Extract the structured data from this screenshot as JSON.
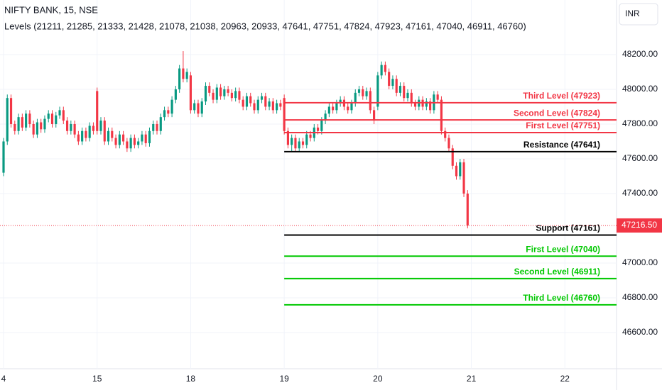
{
  "chart_data": {
    "type": "candlestick",
    "title": "NIFTY BANK, 15, NSE",
    "indicator": "Levels (21211, 21285, 21333, 21428, 21078, 21038, 20963, 20933, 47641, 47751, 47824, 47923, 47161, 47040, 46911, 46760)",
    "currency": "INR",
    "up_color": "#089981",
    "down_color": "#f23645",
    "ylim": [
      46392,
      48514
    ],
    "yticks": [
      {
        "value": 46600,
        "label": "46600.00"
      },
      {
        "value": 46800,
        "label": "46800.00"
      },
      {
        "value": 47000,
        "label": "47000.00"
      },
      {
        "value": 47400,
        "label": "47400.00"
      },
      {
        "value": 47600,
        "label": "47600.00"
      },
      {
        "value": 47800,
        "label": "47800.00"
      },
      {
        "value": 48000,
        "label": "48000.00"
      },
      {
        "value": 48200,
        "label": "48200.00"
      }
    ],
    "xlim": [
      -0.95,
      163.8
    ],
    "xticks": [
      {
        "value": 0,
        "label": "4"
      },
      {
        "value": 25,
        "label": "15"
      },
      {
        "value": 50,
        "label": "18"
      },
      {
        "value": 75,
        "label": "19"
      },
      {
        "value": 100,
        "label": "20"
      },
      {
        "value": 125,
        "label": "21"
      },
      {
        "value": 150,
        "label": "22"
      }
    ],
    "last_price": {
      "value": 47216.5,
      "label": "47216.50",
      "color": "#f23645"
    },
    "levels_start": 75,
    "levels": [
      {
        "label": "Third Level (47923)",
        "value": 47923,
        "color": "#f23645"
      },
      {
        "label": "Second Level (47824)",
        "value": 47824,
        "color": "#f23645"
      },
      {
        "label": "First Level (47751)",
        "value": 47751,
        "color": "#f23645"
      },
      {
        "label": "Resistance (47641)",
        "value": 47641,
        "color": "#000000"
      },
      {
        "label": "Support (47161)",
        "value": 47161,
        "color": "#000000"
      },
      {
        "label": "First Level (47040)",
        "value": 47040,
        "color": "#00c800"
      },
      {
        "label": "Second Level (46911)",
        "value": 46911,
        "color": "#00c800"
      },
      {
        "label": "Third Level (46760)",
        "value": 46760,
        "color": "#00c800"
      }
    ],
    "ohlc": [
      [
        47520,
        47720,
        47500,
        47700
      ],
      [
        47700,
        47970,
        47680,
        47950
      ],
      [
        47950,
        47970,
        47780,
        47800
      ],
      [
        47800,
        47820,
        47740,
        47760
      ],
      [
        47760,
        47860,
        47740,
        47840
      ],
      [
        47840,
        47860,
        47760,
        47780
      ],
      [
        47780,
        47880,
        47760,
        47860
      ],
      [
        47860,
        47880,
        47780,
        47800
      ],
      [
        47800,
        47820,
        47720,
        47740
      ],
      [
        47740,
        47830,
        47720,
        47810
      ],
      [
        47810,
        47830,
        47750,
        47770
      ],
      [
        47770,
        47850,
        47750,
        47830
      ],
      [
        47830,
        47880,
        47810,
        47860
      ],
      [
        47860,
        47880,
        47780,
        47800
      ],
      [
        47800,
        47870,
        47780,
        47850
      ],
      [
        47850,
        47900,
        47830,
        47880
      ],
      [
        47880,
        47900,
        47800,
        47820
      ],
      [
        47820,
        47840,
        47740,
        47760
      ],
      [
        47760,
        47820,
        47740,
        47800
      ],
      [
        47800,
        47820,
        47720,
        47740
      ],
      [
        47740,
        47760,
        47680,
        47700
      ],
      [
        47700,
        47780,
        47680,
        47760
      ],
      [
        47760,
        47780,
        47700,
        47720
      ],
      [
        47720,
        47810,
        47700,
        47790
      ],
      [
        47790,
        47810,
        47740,
        47760
      ],
      [
        47990,
        48010,
        47740,
        47760
      ],
      [
        47760,
        47840,
        47740,
        47820
      ],
      [
        47820,
        47840,
        47680,
        47700
      ],
      [
        47700,
        47780,
        47680,
        47760
      ],
      [
        47760,
        47780,
        47700,
        47720
      ],
      [
        47720,
        47740,
        47660,
        47680
      ],
      [
        47680,
        47760,
        47660,
        47740
      ],
      [
        47740,
        47760,
        47680,
        47700
      ],
      [
        47700,
        47720,
        47640,
        47660
      ],
      [
        47660,
        47740,
        47640,
        47720
      ],
      [
        47720,
        47740,
        47660,
        47680
      ],
      [
        47680,
        47720,
        47660,
        47700
      ],
      [
        47700,
        47760,
        47680,
        47740
      ],
      [
        47740,
        47760,
        47670,
        47690
      ],
      [
        47690,
        47780,
        47670,
        47760
      ],
      [
        47760,
        47820,
        47740,
        47800
      ],
      [
        47800,
        47820,
        47740,
        47760
      ],
      [
        47760,
        47860,
        47740,
        47840
      ],
      [
        47840,
        47900,
        47820,
        47880
      ],
      [
        47880,
        47900,
        47840,
        47860
      ],
      [
        47860,
        47960,
        47840,
        47940
      ],
      [
        47940,
        48020,
        47920,
        48000
      ],
      [
        48000,
        48140,
        47980,
        48120
      ],
      [
        48120,
        48220,
        48040,
        48060
      ],
      [
        48060,
        48120,
        48040,
        48100
      ],
      [
        48080,
        48100,
        47860,
        47880
      ],
      [
        47880,
        47940,
        47860,
        47920
      ],
      [
        47920,
        47940,
        47840,
        47860
      ],
      [
        47860,
        47950,
        47840,
        47930
      ],
      [
        47930,
        48040,
        47910,
        48020
      ],
      [
        48020,
        48040,
        47960,
        47980
      ],
      [
        47980,
        48000,
        47920,
        47940
      ],
      [
        47940,
        48030,
        47920,
        48010
      ],
      [
        48010,
        48030,
        47940,
        47960
      ],
      [
        47960,
        48020,
        47940,
        48000
      ],
      [
        48000,
        48020,
        47960,
        47980
      ],
      [
        47980,
        48000,
        47930,
        47950
      ],
      [
        47950,
        48010,
        47930,
        47990
      ],
      [
        47990,
        48010,
        47920,
        47940
      ],
      [
        47940,
        47960,
        47880,
        47900
      ],
      [
        47900,
        47980,
        47880,
        47960
      ],
      [
        47960,
        47980,
        47900,
        47920
      ],
      [
        47920,
        47940,
        47860,
        47880
      ],
      [
        47880,
        47960,
        47860,
        47940
      ],
      [
        47940,
        47980,
        47920,
        47960
      ],
      [
        47960,
        47980,
        47880,
        47900
      ],
      [
        47900,
        47950,
        47880,
        47930
      ],
      [
        47930,
        47950,
        47860,
        47880
      ],
      [
        47880,
        47940,
        47860,
        47920
      ],
      [
        47920,
        47940,
        47880,
        47900
      ],
      [
        47950,
        47970,
        47740,
        47760
      ],
      [
        47760,
        47780,
        47660,
        47680
      ],
      [
        47680,
        47740,
        47640,
        47720
      ],
      [
        47720,
        47740,
        47640,
        47660
      ],
      [
        47660,
        47720,
        47640,
        47700
      ],
      [
        47700,
        47720,
        47660,
        47680
      ],
      [
        47680,
        47760,
        47660,
        47740
      ],
      [
        47740,
        47760,
        47700,
        47720
      ],
      [
        47720,
        47800,
        47700,
        47780
      ],
      [
        47780,
        47800,
        47740,
        47760
      ],
      [
        47760,
        47840,
        47740,
        47820
      ],
      [
        47820,
        47880,
        47800,
        47860
      ],
      [
        47860,
        47920,
        47840,
        47900
      ],
      [
        47900,
        47920,
        47860,
        47880
      ],
      [
        47880,
        47940,
        47860,
        47920
      ],
      [
        47920,
        47960,
        47900,
        47940
      ],
      [
        47940,
        47960,
        47880,
        47900
      ],
      [
        47900,
        47920,
        47860,
        47880
      ],
      [
        47880,
        47940,
        47860,
        47920
      ],
      [
        47920,
        48000,
        47900,
        47980
      ],
      [
        47980,
        48020,
        47960,
        48000
      ],
      [
        48000,
        48020,
        47940,
        47960
      ],
      [
        47960,
        48010,
        47940,
        47990
      ],
      [
        47990,
        48010,
        47860,
        47880
      ],
      [
        47880,
        47900,
        47800,
        47820
      ],
      [
        47900,
        48100,
        47880,
        48080
      ],
      [
        48080,
        48160,
        48060,
        48140
      ],
      [
        48140,
        48160,
        48080,
        48100
      ],
      [
        48100,
        48120,
        48000,
        48020
      ],
      [
        48020,
        48080,
        48000,
        48060
      ],
      [
        48060,
        48080,
        47960,
        47980
      ],
      [
        47980,
        48040,
        47960,
        48020
      ],
      [
        48020,
        48040,
        47930,
        47950
      ],
      [
        47950,
        48000,
        47930,
        47980
      ],
      [
        47980,
        48000,
        47900,
        47920
      ],
      [
        47920,
        47940,
        47880,
        47900
      ],
      [
        47900,
        47960,
        47880,
        47940
      ],
      [
        47940,
        47960,
        47880,
        47900
      ],
      [
        47900,
        47950,
        47880,
        47930
      ],
      [
        47930,
        47950,
        47860,
        47880
      ],
      [
        47880,
        47990,
        47860,
        47970
      ],
      [
        47970,
        47990,
        47920,
        47940
      ],
      [
        47940,
        47960,
        47740,
        47760
      ],
      [
        47760,
        47780,
        47700,
        47720
      ],
      [
        47720,
        47740,
        47640,
        47660
      ],
      [
        47660,
        47680,
        47540,
        47560
      ],
      [
        47560,
        47580,
        47480,
        47500
      ],
      [
        47500,
        47600,
        47480,
        47580
      ],
      [
        47580,
        47600,
        47380,
        47400
      ],
      [
        47400,
        47420,
        47200,
        47216.5
      ]
    ]
  }
}
